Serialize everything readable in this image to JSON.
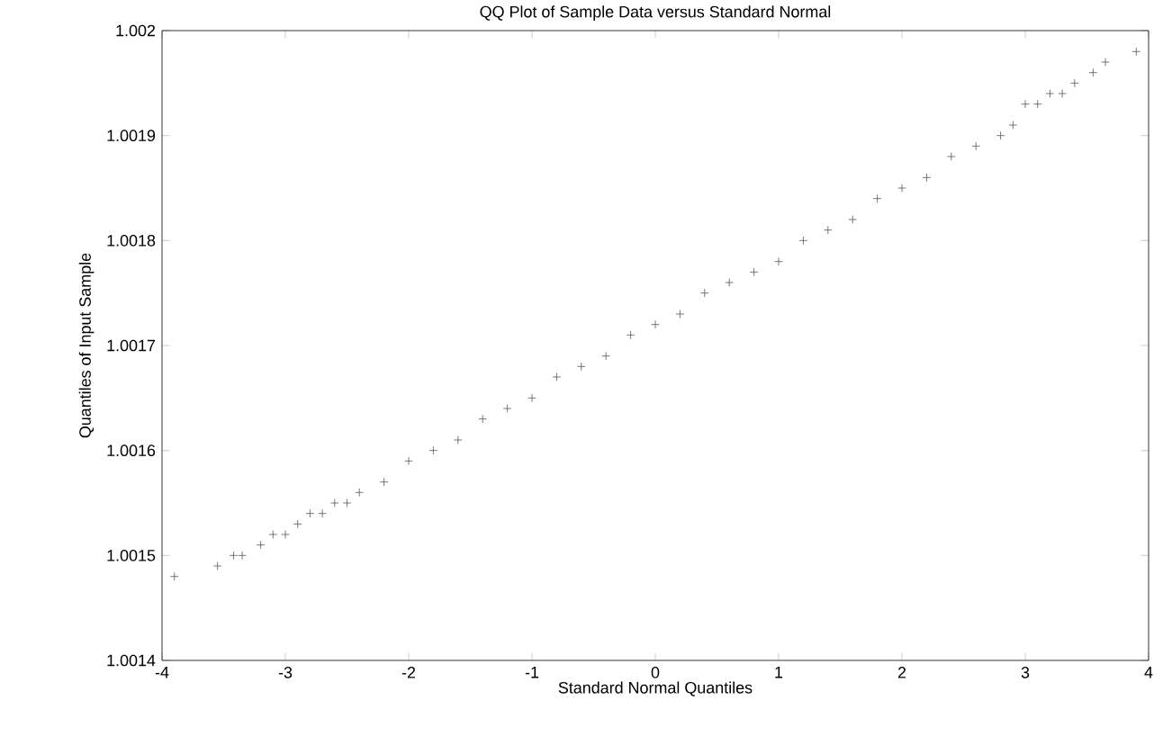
{
  "chart_data": {
    "type": "scatter",
    "title": "QQ Plot of Sample Data versus Standard Normal",
    "xlabel": "Standard Normal Quantiles",
    "ylabel": "Quantiles of Input Sample",
    "x": [
      -3.9,
      -3.55,
      -3.42,
      -3.35,
      -3.2,
      -3.1,
      -3.0,
      -2.9,
      -2.8,
      -2.7,
      -2.6,
      -2.5,
      -2.4,
      -2.2,
      -2.0,
      -1.8,
      -1.6,
      -1.4,
      -1.2,
      -1.0,
      -0.8,
      -0.6,
      -0.4,
      -0.2,
      0,
      0.2,
      0.4,
      0.6,
      0.8,
      1.0,
      1.2,
      1.4,
      1.6,
      1.8,
      2.0,
      2.2,
      2.4,
      2.6,
      2.8,
      2.9,
      3.0,
      3.1,
      3.2,
      3.3,
      3.4,
      3.55,
      3.65,
      3.9
    ],
    "series": [
      {
        "color": "#555555",
        "values": [
          1.00148,
          1.00149,
          1.0015,
          1.0015,
          1.00151,
          1.00152,
          1.00152,
          1.00153,
          1.00154,
          1.00154,
          1.00155,
          1.00155,
          1.00156,
          1.00157,
          1.00159,
          1.0016,
          1.00161,
          1.00163,
          1.00164,
          1.00165,
          1.00167,
          1.00168,
          1.00169,
          1.00171,
          1.00172,
          1.00173,
          1.00175,
          1.00176,
          1.00177,
          1.00178,
          1.0018,
          1.00181,
          1.00182,
          1.00184,
          1.00185,
          1.00186,
          1.00188,
          1.00189,
          1.0019,
          1.00191,
          1.00193,
          1.00193,
          1.00194,
          1.00194,
          1.00195,
          1.00196,
          1.00197,
          1.00198
        ]
      }
    ],
    "xlim": [
      -4,
      4
    ],
    "ylim": [
      1.0014,
      1.002
    ],
    "xticks": [
      -4,
      -3,
      -2,
      -1,
      0,
      1,
      2,
      3,
      4
    ],
    "yticks": [
      1.0014,
      1.0015,
      1.0016,
      1.0017,
      1.0018,
      1.0019,
      1.002
    ],
    "marker": "cross",
    "grid": false
  }
}
